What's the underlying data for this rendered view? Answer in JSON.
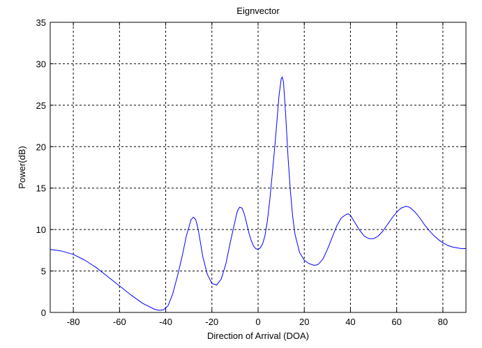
{
  "chart_data": {
    "type": "line",
    "title": "Eignvector",
    "xlabel": "Direction of Arrival (DOA)",
    "ylabel": "Power(dB)",
    "xlim": [
      -90,
      90
    ],
    "ylim": [
      0,
      35
    ],
    "xticks": [
      -80,
      -60,
      -40,
      -20,
      0,
      20,
      40,
      60,
      80
    ],
    "yticks": [
      0,
      5,
      10,
      15,
      20,
      25,
      30,
      35
    ],
    "grid": true,
    "line_color": "#0000ff",
    "series": [
      {
        "x": [
          -90,
          -85,
          -80,
          -75,
          -70,
          -65,
          -60,
          -55,
          -50,
          -45,
          -43,
          -41,
          -39,
          -37,
          -35,
          -33,
          -31,
          -29,
          -28,
          -27,
          -26,
          -25,
          -24,
          -22,
          -20,
          -18,
          -16,
          -14,
          -12,
          -10,
          -9,
          -8,
          -7,
          -6,
          -5,
          -4,
          -3,
          -2,
          -1,
          0,
          1,
          2,
          3,
          4,
          5,
          6,
          7,
          8,
          9,
          10,
          10.5,
          11,
          12,
          13,
          14,
          15,
          16,
          18,
          20,
          22,
          24,
          25,
          26,
          28,
          30,
          32,
          34,
          36,
          38,
          39,
          40,
          42,
          44,
          46,
          48,
          50,
          52,
          54,
          56,
          58,
          60,
          62,
          64,
          65,
          66,
          68,
          70,
          72,
          74,
          76,
          78,
          80,
          82,
          84,
          86,
          88,
          90
        ],
        "y": [
          7.6,
          7.4,
          7.0,
          6.3,
          5.4,
          4.3,
          3.2,
          2.1,
          1.1,
          0.4,
          0.25,
          0.3,
          0.8,
          2.2,
          4.3,
          6.6,
          9.3,
          11.2,
          11.5,
          11.2,
          10.1,
          8.5,
          6.8,
          4.6,
          3.5,
          3.3,
          4.0,
          5.8,
          8.5,
          11.0,
          12.2,
          12.7,
          12.6,
          11.9,
          10.8,
          9.6,
          8.7,
          8.0,
          7.7,
          7.6,
          7.8,
          8.3,
          9.3,
          11.0,
          13.4,
          16.3,
          19.3,
          22.5,
          26.0,
          28.2,
          28.4,
          27.8,
          23.6,
          18.6,
          14.6,
          11.5,
          9.4,
          7.2,
          6.3,
          5.9,
          5.7,
          5.7,
          5.8,
          6.4,
          7.6,
          9.0,
          10.4,
          11.4,
          11.8,
          11.9,
          11.7,
          10.8,
          9.9,
          9.2,
          8.9,
          8.9,
          9.2,
          9.8,
          10.6,
          11.4,
          12.1,
          12.6,
          12.8,
          12.75,
          12.6,
          12.1,
          11.4,
          10.6,
          9.9,
          9.3,
          8.8,
          8.4,
          8.1,
          7.9,
          7.8,
          7.7,
          7.7
        ]
      }
    ]
  }
}
